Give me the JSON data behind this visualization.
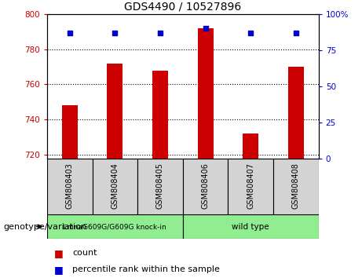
{
  "title": "GDS4490 / 10527896",
  "samples": [
    "GSM808403",
    "GSM808404",
    "GSM808405",
    "GSM808406",
    "GSM808407",
    "GSM808408"
  ],
  "counts": [
    748,
    772,
    768,
    792,
    732,
    770
  ],
  "percentile_ranks": [
    87,
    87,
    87,
    90,
    87,
    87
  ],
  "ymin": 718,
  "ymax": 800,
  "yticks": [
    720,
    740,
    760,
    780,
    800
  ],
  "y2min": 0,
  "y2max": 100,
  "y2ticks": [
    0,
    25,
    50,
    75,
    100
  ],
  "y2tick_labels": [
    "0",
    "25",
    "50",
    "75",
    "100%"
  ],
  "bar_color": "#cc0000",
  "dot_color": "#0000cc",
  "group1_label": "LmnaG609G/G609G knock-in",
  "group2_label": "wild type",
  "group1_indices": [
    0,
    1,
    2
  ],
  "group2_indices": [
    3,
    4,
    5
  ],
  "group1_color": "#90ee90",
  "group2_color": "#90ee90",
  "genotype_label": "genotype/variation",
  "legend_count": "count",
  "legend_percentile": "percentile rank within the sample",
  "left_tick_color": "#cc0000",
  "right_tick_color": "#0000cc",
  "sample_box_color": "#d3d3d3",
  "bar_width": 0.35,
  "title_fontsize": 10,
  "tick_fontsize": 7.5,
  "xlabel_fontsize": 7,
  "legend_fontsize": 8,
  "genotype_fontsize": 8
}
